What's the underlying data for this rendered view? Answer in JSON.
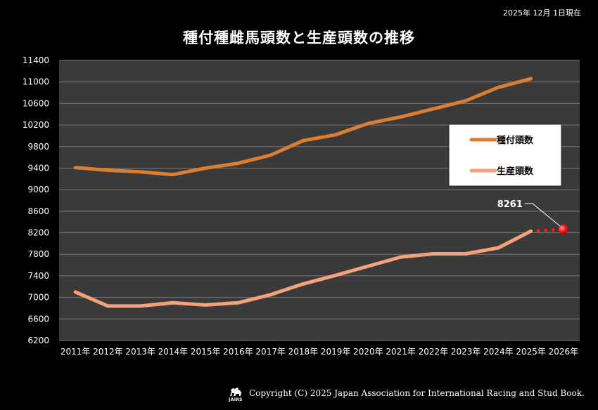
{
  "date_note": "2025年 12月 1日現在",
  "copyright": "Copyright (C) 2025 Japan Association for International Racing and Stud Book.",
  "logo_text": "JAIRS",
  "colors": {
    "background": "#000000",
    "plot_area": "#3a3a3a",
    "grid": "#777777",
    "series_dark": "#d97e32",
    "series_light": "#f4a27a",
    "forecast": "#ff1a1a"
  },
  "chart_data": {
    "type": "line",
    "title": "種付種雌馬頭数と生産頭数の推移",
    "xlabel": "",
    "ylabel": "",
    "ylim": [
      6200,
      11400
    ],
    "yticks": [
      6200,
      6600,
      7000,
      7400,
      7800,
      8200,
      8600,
      9000,
      9400,
      9800,
      10200,
      10600,
      11000,
      11400
    ],
    "categories": [
      "2011年",
      "2012年",
      "2013年",
      "2014年",
      "2015年",
      "2016年",
      "2017年",
      "2018年",
      "2019年",
      "2020年",
      "2021年",
      "2022年",
      "2023年",
      "2024年",
      "2025年",
      "2026年"
    ],
    "series": [
      {
        "name": "種付頭数",
        "color": "#d97e32",
        "values": [
          9410,
          9360,
          9330,
          9280,
          9400,
          9490,
          9640,
          9910,
          10020,
          10230,
          10350,
          10500,
          10650,
          10900,
          11060,
          null
        ]
      },
      {
        "name": "生産頭数",
        "color": "#f4a27a",
        "values": [
          7100,
          6840,
          6840,
          6900,
          6860,
          6900,
          7050,
          7250,
          7410,
          7580,
          7750,
          7810,
          7810,
          7920,
          8230,
          null
        ]
      }
    ],
    "forecast": {
      "from_category": "2025年",
      "to_category": "2026年",
      "from_value": 8230,
      "value": 8261,
      "label": "8261"
    },
    "legend": [
      "種付頭数",
      "生産頭数"
    ],
    "legend_position": "right"
  }
}
